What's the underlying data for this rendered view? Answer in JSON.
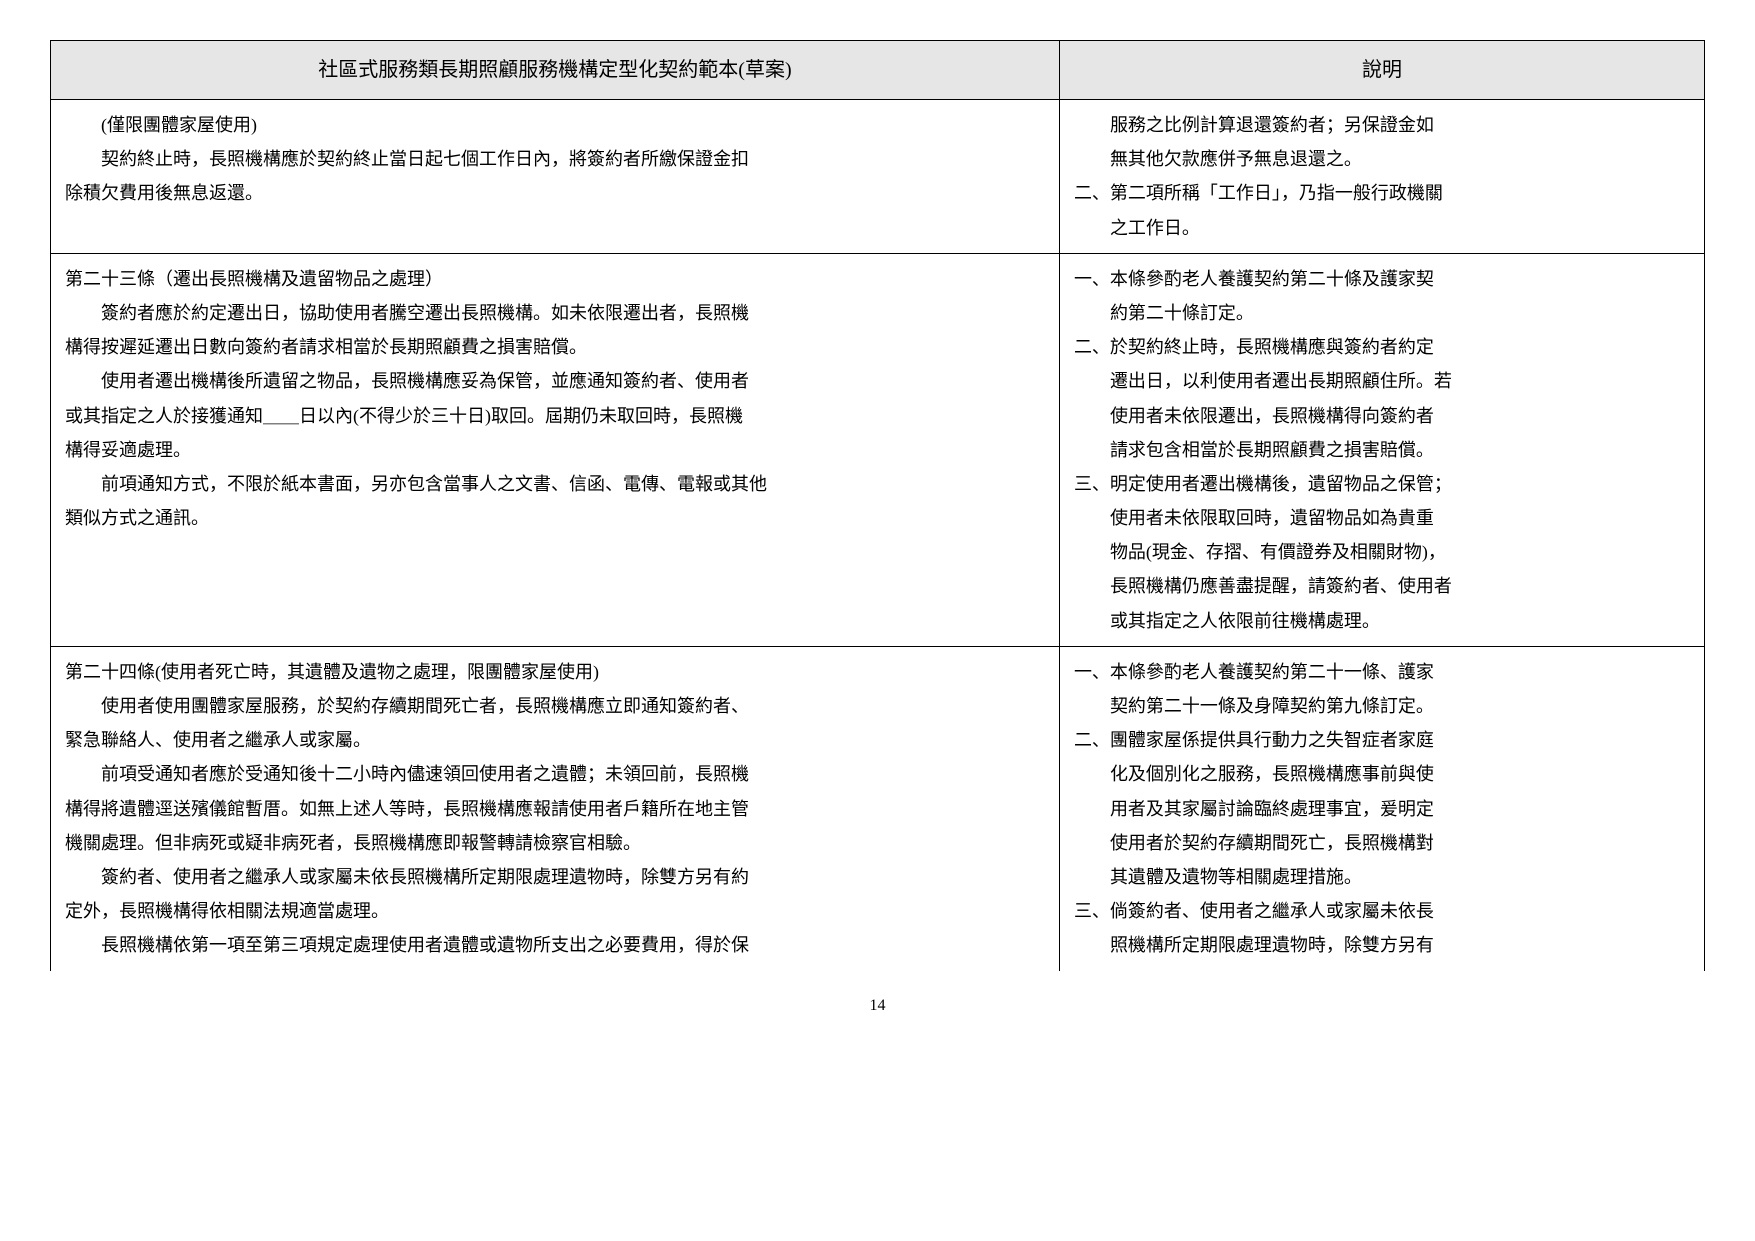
{
  "header": {
    "left": "社區式服務類長期照顧服務機構定型化契約範本(草案)",
    "right": "說明"
  },
  "rows": [
    {
      "left": {
        "lines": [
          {
            "cls": "body-line",
            "text": "(僅限團體家屋使用)"
          },
          {
            "cls": "body-line",
            "text": "契約終止時，長照機構應於契約終止當日起七個工作日內，將簽約者所繳保證金扣"
          },
          {
            "cls": "body-line-cont",
            "text": "除積欠費用後無息返還。"
          }
        ]
      },
      "right": {
        "items": [
          {
            "cls": "block-cont",
            "text": "服務之比例計算退還簽約者；另保證金如"
          },
          {
            "cls": "block-cont",
            "text": "無其他欠款應併予無息退還之。"
          },
          {
            "cls": "block-hang",
            "text": "二、第二項所稱「工作日」，乃指一般行政機關"
          },
          {
            "cls": "block-cont",
            "text": "之工作日。"
          }
        ]
      }
    },
    {
      "left": {
        "lines": [
          {
            "cls": "article-title",
            "text": "第二十三條（遷出長照機構及遺留物品之處理）"
          },
          {
            "cls": "body-line",
            "text": "簽約者應於約定遷出日，協助使用者騰空遷出長照機構。如未依限遷出者，長照機"
          },
          {
            "cls": "body-line-cont",
            "text": "構得按遲延遷出日數向簽約者請求相當於長期照顧費之損害賠償。"
          },
          {
            "cls": "body-line",
            "text": "使用者遷出機構後所遺留之物品，長照機構應妥為保管，並應通知簽約者、使用者"
          },
          {
            "cls": "body-line-cont",
            "text": "或其指定之人於接獲通知＿＿日以內(不得少於三十日)取回。屆期仍未取回時，長照機"
          },
          {
            "cls": "body-line-cont",
            "text": "構得妥適處理。"
          },
          {
            "cls": "body-line",
            "text": "前項通知方式，不限於紙本書面，另亦包含當事人之文書、信函、電傳、電報或其他"
          },
          {
            "cls": "body-line-cont",
            "text": "類似方式之通訊。"
          }
        ]
      },
      "right": {
        "items": [
          {
            "cls": "block-hang",
            "text": "一、本條參酌老人養護契約第二十條及護家契"
          },
          {
            "cls": "block-cont",
            "text": "約第二十條訂定。"
          },
          {
            "cls": "block-hang",
            "text": "二、於契約終止時，長照機構應與簽約者約定"
          },
          {
            "cls": "block-cont",
            "text": "遷出日，以利使用者遷出長期照顧住所。若"
          },
          {
            "cls": "block-cont",
            "text": "使用者未依限遷出，長照機構得向簽約者"
          },
          {
            "cls": "block-cont",
            "text": "請求包含相當於長期照顧費之損害賠償。"
          },
          {
            "cls": "block-hang",
            "text": "三、明定使用者遷出機構後，遺留物品之保管；"
          },
          {
            "cls": "block-cont",
            "text": "使用者未依限取回時，遺留物品如為貴重"
          },
          {
            "cls": "block-cont",
            "text": "物品(現金、存摺、有價證券及相關財物)，"
          },
          {
            "cls": "block-cont",
            "text": "長照機構仍應善盡提醒，請簽約者、使用者"
          },
          {
            "cls": "block-cont",
            "text": "或其指定之人依限前往機構處理。"
          }
        ]
      }
    },
    {
      "left": {
        "lines": [
          {
            "cls": "article-title",
            "text": "第二十四條(使用者死亡時，其遺體及遺物之處理，限團體家屋使用)"
          },
          {
            "cls": "body-line",
            "text": "使用者使用團體家屋服務，於契約存續期間死亡者，長照機構應立即通知簽約者、"
          },
          {
            "cls": "body-line-cont",
            "text": "緊急聯絡人、使用者之繼承人或家屬。"
          },
          {
            "cls": "body-line",
            "text": "前項受通知者應於受通知後十二小時內儘速領回使用者之遺體；未領回前，長照機"
          },
          {
            "cls": "body-line-cont",
            "text": "構得將遺體逕送殯儀館暫厝。如無上述人等時，長照機構應報請使用者戶籍所在地主管"
          },
          {
            "cls": "body-line-cont",
            "text": "機關處理。但非病死或疑非病死者，長照機構應即報警轉請檢察官相驗。"
          },
          {
            "cls": "body-line",
            "text": "簽約者、使用者之繼承人或家屬未依長照機構所定期限處理遺物時，除雙方另有約"
          },
          {
            "cls": "body-line-cont",
            "text": "定外，長照機構得依相關法規適當處理。"
          },
          {
            "cls": "body-line",
            "text": "長照機構依第一項至第三項規定處理使用者遺體或遺物所支出之必要費用，得於保"
          }
        ]
      },
      "right": {
        "items": [
          {
            "cls": "block-hang",
            "text": "一、本條參酌老人養護契約第二十一條、護家"
          },
          {
            "cls": "block-cont",
            "text": "契約第二十一條及身障契約第九條訂定。"
          },
          {
            "cls": "block-hang",
            "text": "二、團體家屋係提供具行動力之失智症者家庭"
          },
          {
            "cls": "block-cont",
            "text": "化及個別化之服務，長照機構應事前與使"
          },
          {
            "cls": "block-cont",
            "text": "用者及其家屬討論臨終處理事宜，爰明定"
          },
          {
            "cls": "block-cont",
            "text": "使用者於契約存續期間死亡，長照機構對"
          },
          {
            "cls": "block-cont",
            "text": "其遺體及遺物等相關處理措施。"
          },
          {
            "cls": "block-hang",
            "text": "三、倘簽約者、使用者之繼承人或家屬未依長"
          },
          {
            "cls": "block-cont",
            "text": "照機構所定期限處理遺物時，除雙方另有"
          }
        ]
      }
    }
  ],
  "pageNumber": "14"
}
